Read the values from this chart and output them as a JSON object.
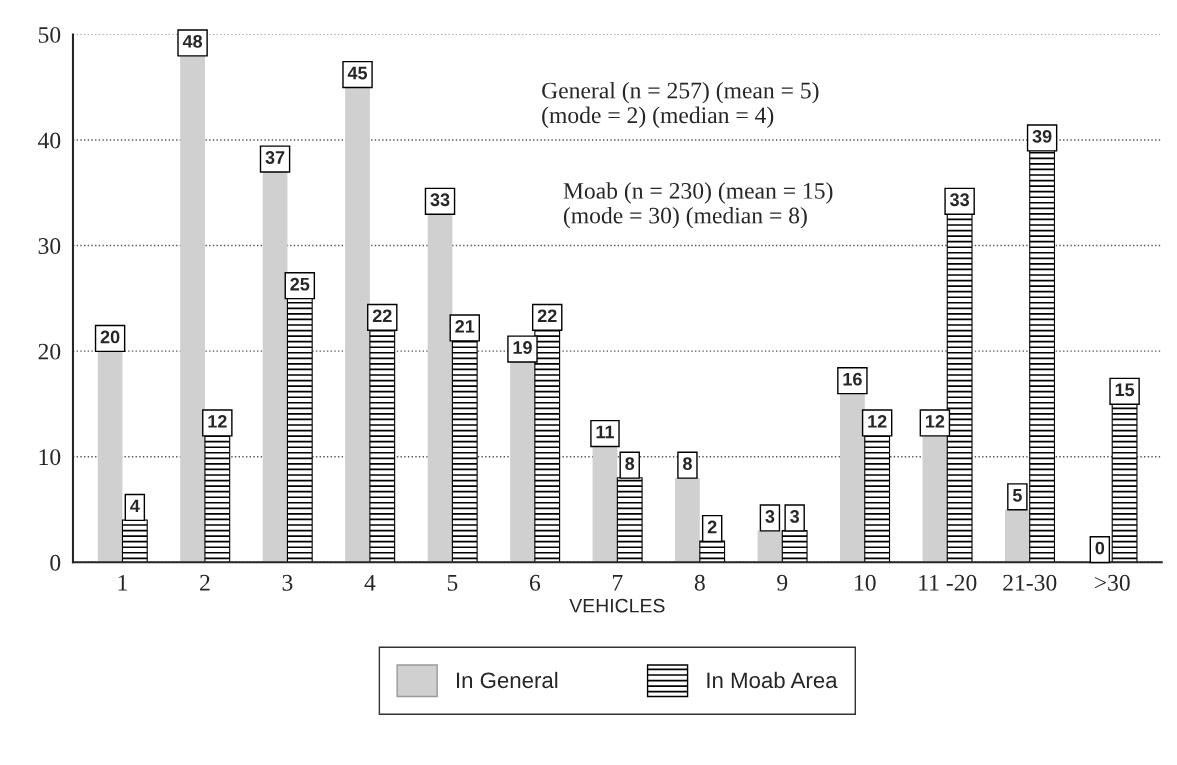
{
  "chart_data": {
    "type": "bar",
    "xlabel": "VEHICLES",
    "categories": [
      "1",
      "2",
      "3",
      "4",
      "5",
      "6",
      "7",
      "8",
      "9",
      "10",
      "11 -20",
      "21-30",
      ">30"
    ],
    "series": [
      {
        "name": "In General",
        "color": "#d0d0d0",
        "values": [
          20,
          48,
          37,
          45,
          33,
          19,
          11,
          8,
          3,
          16,
          12,
          5,
          0
        ]
      },
      {
        "name": "In Moab Area",
        "color": "#000000",
        "values": [
          4,
          12,
          25,
          22,
          21,
          22,
          8,
          2,
          3,
          12,
          33,
          39,
          15
        ]
      }
    ],
    "ylim": [
      0,
      50
    ],
    "yticks": [
      0,
      10,
      20,
      30,
      40,
      50
    ],
    "grid": "y",
    "legend": "bottom",
    "data_labels": true,
    "annotations": [
      "General (n = 257) (mean = 5)\n(mode = 2) (median = 4)",
      "Moab (n = 230) (mean = 15)\n(mode = 30) (median = 8)"
    ]
  }
}
